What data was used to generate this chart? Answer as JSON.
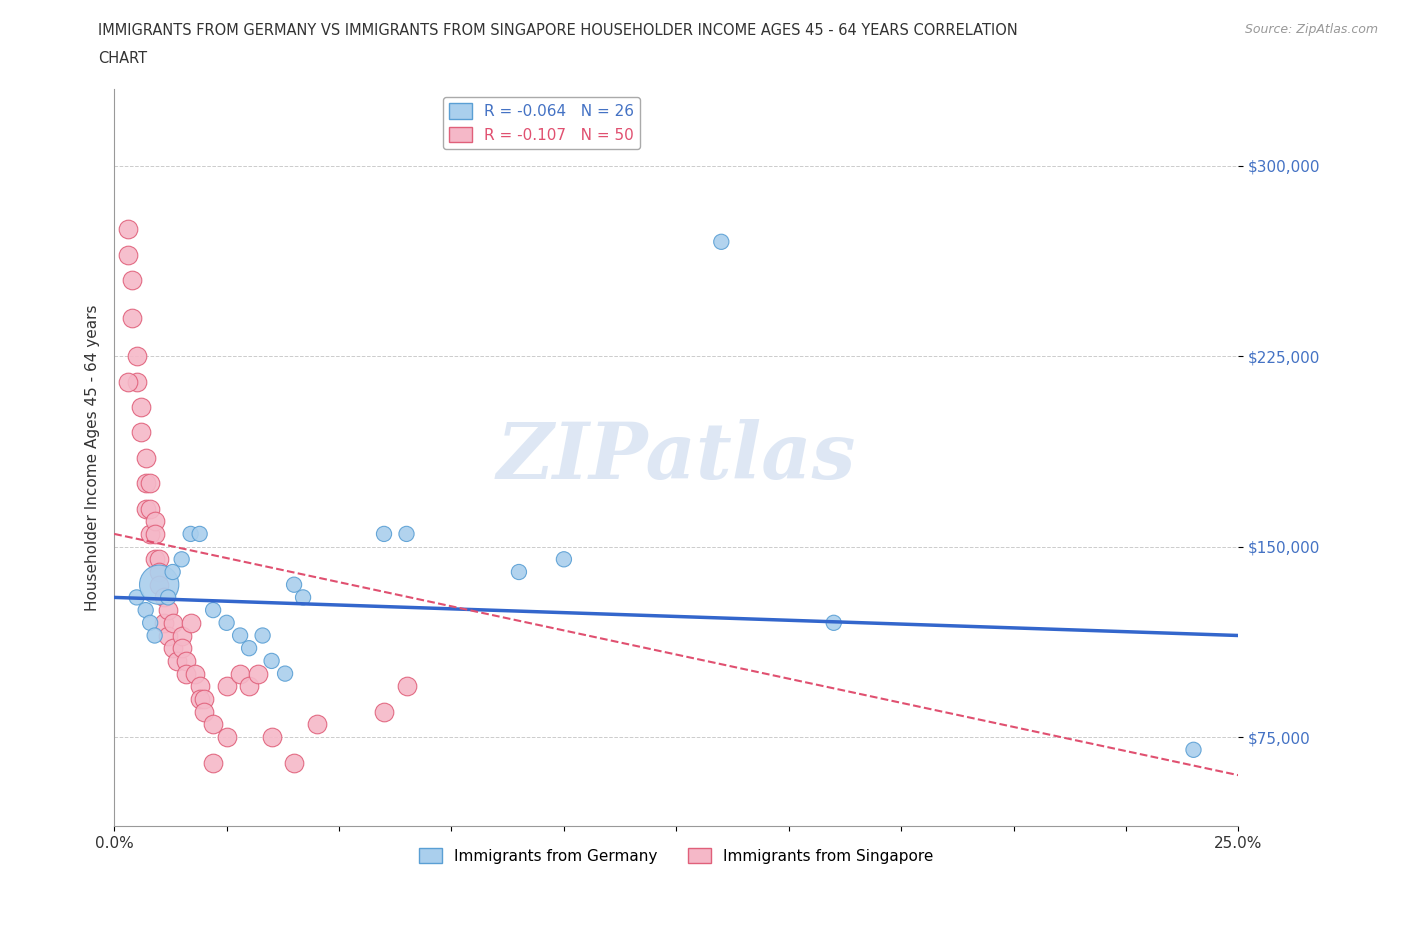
{
  "title_line1": "IMMIGRANTS FROM GERMANY VS IMMIGRANTS FROM SINGAPORE HOUSEHOLDER INCOME AGES 45 - 64 YEARS CORRELATION",
  "title_line2": "CHART",
  "source": "Source: ZipAtlas.com",
  "ylabel": "Householder Income Ages 45 - 64 years",
  "xlim": [
    0.0,
    0.25
  ],
  "ylim": [
    40000,
    330000
  ],
  "yticks": [
    75000,
    150000,
    225000,
    300000
  ],
  "ytick_labels": [
    "$75,000",
    "$150,000",
    "$225,000",
    "$300,000"
  ],
  "xticks": [
    0.0,
    0.025,
    0.05,
    0.075,
    0.1,
    0.125,
    0.15,
    0.175,
    0.2,
    0.225,
    0.25
  ],
  "xtick_labels": [
    "0.0%",
    "",
    "",
    "",
    "",
    "",
    "",
    "",
    "",
    "",
    "25.0%"
  ],
  "germany_color": "#aacfed",
  "germany_edge_color": "#5a9fd4",
  "singapore_color": "#f5b8c8",
  "singapore_edge_color": "#e0607a",
  "germany_R": -0.064,
  "germany_N": 26,
  "singapore_R": -0.107,
  "singapore_N": 50,
  "germany_line_color": "#3366cc",
  "singapore_line_color": "#e05070",
  "watermark_text": "ZIPatlas",
  "germany_x": [
    0.005,
    0.007,
    0.008,
    0.009,
    0.01,
    0.012,
    0.013,
    0.015,
    0.017,
    0.019,
    0.022,
    0.025,
    0.028,
    0.03,
    0.033,
    0.035,
    0.038,
    0.04,
    0.042,
    0.06,
    0.065,
    0.09,
    0.1,
    0.135,
    0.16,
    0.24
  ],
  "germany_y": [
    130000,
    125000,
    120000,
    115000,
    135000,
    130000,
    140000,
    145000,
    155000,
    155000,
    125000,
    120000,
    115000,
    110000,
    115000,
    105000,
    100000,
    135000,
    130000,
    155000,
    155000,
    140000,
    145000,
    270000,
    120000,
    70000
  ],
  "germany_size": [
    100,
    100,
    100,
    100,
    100,
    100,
    100,
    100,
    100,
    100,
    100,
    100,
    100,
    100,
    100,
    100,
    100,
    100,
    100,
    100,
    100,
    100,
    100,
    100,
    100,
    100
  ],
  "germany_large_idx": 4,
  "germany_large_size": 800,
  "singapore_x": [
    0.003,
    0.003,
    0.004,
    0.005,
    0.005,
    0.006,
    0.006,
    0.007,
    0.007,
    0.007,
    0.008,
    0.008,
    0.008,
    0.009,
    0.009,
    0.009,
    0.01,
    0.01,
    0.01,
    0.011,
    0.011,
    0.012,
    0.012,
    0.013,
    0.013,
    0.014,
    0.015,
    0.015,
    0.016,
    0.016,
    0.017,
    0.018,
    0.019,
    0.019,
    0.02,
    0.02,
    0.022,
    0.022,
    0.025,
    0.025,
    0.028,
    0.03,
    0.032,
    0.035,
    0.04,
    0.045,
    0.06,
    0.065,
    0.003,
    0.004
  ],
  "singapore_y": [
    275000,
    265000,
    255000,
    225000,
    215000,
    205000,
    195000,
    185000,
    175000,
    165000,
    175000,
    165000,
    155000,
    160000,
    155000,
    145000,
    145000,
    140000,
    135000,
    130000,
    120000,
    125000,
    115000,
    120000,
    110000,
    105000,
    115000,
    110000,
    105000,
    100000,
    120000,
    100000,
    95000,
    90000,
    90000,
    85000,
    80000,
    65000,
    95000,
    75000,
    100000,
    95000,
    100000,
    75000,
    65000,
    80000,
    85000,
    95000,
    215000,
    240000
  ],
  "germany_line_x": [
    0.0,
    0.25
  ],
  "germany_line_y": [
    130000,
    115000
  ],
  "singapore_line_x": [
    0.0,
    0.25
  ],
  "singapore_line_y": [
    155000,
    60000
  ]
}
